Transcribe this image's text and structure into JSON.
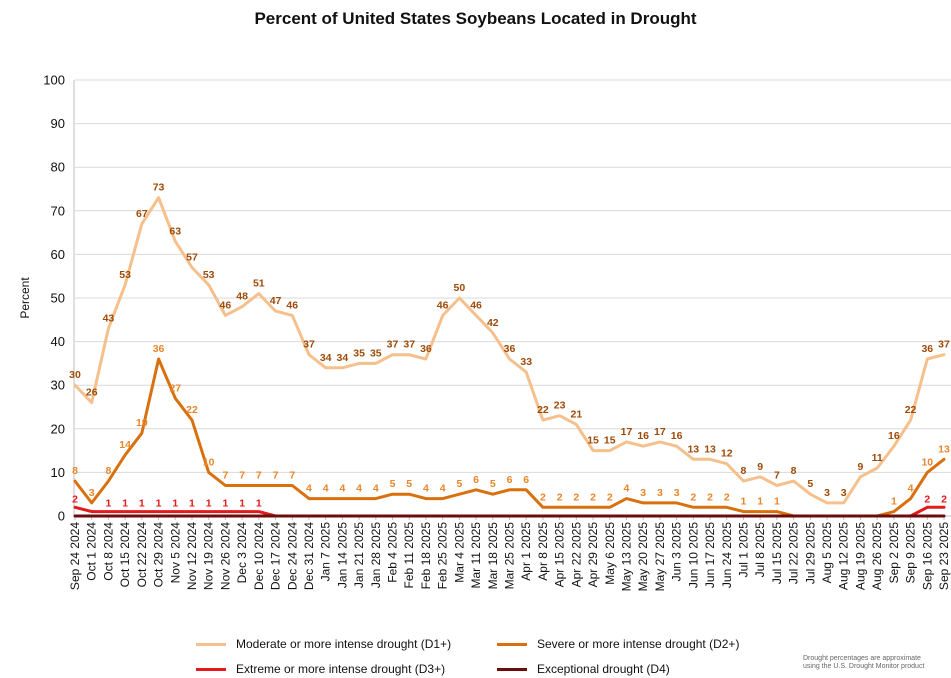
{
  "chart_data": {
    "type": "line",
    "title": "Percent of United States Soybeans Located in Drought",
    "ylabel": "Percent",
    "xlabel": "",
    "ylim": [
      0,
      100
    ],
    "yticks": [
      0,
      10,
      20,
      30,
      40,
      50,
      60,
      70,
      80,
      90,
      100
    ],
    "grid": true,
    "legend_position": "bottom",
    "categories": [
      "Sep 24 2024",
      "Oct 1 2024",
      "Oct 8 2024",
      "Oct 15 2024",
      "Oct 22 2024",
      "Oct 29 2024",
      "Nov 5 2024",
      "Nov 12 2024",
      "Nov 19 2024",
      "Nov 26 2024",
      "Dec 3 2024",
      "Dec 10 2024",
      "Dec 17 2024",
      "Dec 24 2024",
      "Dec 31 2024",
      "Jan 7 2025",
      "Jan 14 2025",
      "Jan 21 2025",
      "Jan 28 2025",
      "Feb 4 2025",
      "Feb 11 2025",
      "Feb 18 2025",
      "Feb 25 2025",
      "Mar 4 2025",
      "Mar 11 2025",
      "Mar 18 2025",
      "Mar 25 2025",
      "Apr 1 2025",
      "Apr 8 2025",
      "Apr 15 2025",
      "Apr 22 2025",
      "Apr 29 2025",
      "May 6 2025",
      "May 13 2025",
      "May 20 2025",
      "May 27 2025",
      "Jun 3 2025",
      "Jun 10 2025",
      "Jun 17 2025",
      "Jun 24 2025",
      "Jul 1 2025",
      "Jul 8 2025",
      "Jul 15 2025",
      "Jul 22 2025",
      "Jul 29 2025",
      "Aug 5 2025",
      "Aug 12 2025",
      "Aug 19 2025",
      "Aug 26 2025",
      "Sep 2 2025",
      "Sep 9 2025",
      "Sep 16 2025",
      "Sep 23 2025"
    ],
    "xticklabels": [
      "Sep 24 2024",
      "Oct 1 2024",
      "Oct 8 2024",
      "Oct 15 2024",
      "Oct 22 2024",
      "Oct 29 2024",
      "Nov 5 2024",
      "Nov 12 2024",
      "Nov 19 2024",
      "Nov 26 2024",
      "Dec 3 2024",
      "Dec 10 2024",
      "Dec 17 2024",
      "Dec 24 2024",
      "Dec 31 2024",
      "Jan 7 2025",
      "Jan 14 2025",
      "Jan 21 2025",
      "Jan 28 2025",
      "Feb 4 2025",
      "Feb 11 2025",
      "Feb 18 2025",
      "Feb 25 2025",
      "Mar 4 2025",
      "Mar 11 2025",
      "Mar 18 2025",
      "Mar 25 2025",
      "Apr 1 2025",
      "Apr 8 2025",
      "Apr 15 2025",
      "Apr 22 2025",
      "Apr 29 2025",
      "May 6 2025",
      "May 13 2025",
      "May 20 2025",
      "May 27 2025",
      "Jun 3 2025",
      "Jun 10 2025",
      "Jun 17 2025",
      "Jun 24 2025",
      "Jul 1 2025",
      "Jul 8 2025",
      "Jul 15 2025",
      "Jul 22 2025",
      "Jul 29 2025",
      "Aug 5 2025",
      "Aug 12 2025",
      "Aug 19 2025",
      "Aug 26 2025",
      "Sep 2 2025",
      "Sep 9 2025",
      "Sep 16 2025",
      "Sep 23 2025"
    ],
    "series": [
      {
        "name": "Moderate or more intense drought (D1+)",
        "color": "#f5c08c",
        "label_color": "#9e4a08",
        "values": [
          30,
          26,
          43,
          53,
          67,
          73,
          63,
          57,
          53,
          46,
          48,
          51,
          47,
          46,
          37,
          34,
          34,
          35,
          35,
          37,
          37,
          36,
          46,
          50,
          46,
          42,
          36,
          33,
          22,
          23,
          21,
          15,
          15,
          17,
          16,
          17,
          16,
          13,
          13,
          12,
          8,
          9,
          7,
          8,
          5,
          3,
          3,
          9,
          11,
          16,
          22,
          36,
          37
        ]
      },
      {
        "name": "Severe or more intense drought (D2+)",
        "color": "#d9700e",
        "label_color": "#e8862a",
        "values": [
          8,
          3,
          8,
          14,
          19,
          36,
          27,
          22,
          10,
          7,
          7,
          7,
          7,
          7,
          4,
          4,
          4,
          4,
          4,
          5,
          5,
          4,
          4,
          5,
          6,
          5,
          6,
          6,
          2,
          2,
          2,
          2,
          2,
          4,
          3,
          3,
          3,
          2,
          2,
          2,
          1,
          1,
          1,
          0,
          0,
          0,
          0,
          0,
          0,
          1,
          4,
          10,
          13
        ]
      },
      {
        "name": "Extreme or more intense drought (D3+)",
        "color": "#e31a1c",
        "label_color": "#e31a1c",
        "values": [
          2,
          1,
          1,
          1,
          1,
          1,
          1,
          1,
          1,
          1,
          1,
          1,
          0,
          0,
          0,
          0,
          0,
          0,
          0,
          0,
          0,
          0,
          0,
          0,
          0,
          0,
          0,
          0,
          0,
          0,
          0,
          0,
          0,
          0,
          0,
          0,
          0,
          0,
          0,
          0,
          0,
          0,
          0,
          0,
          0,
          0,
          0,
          0,
          0,
          0,
          0,
          2,
          2
        ]
      },
      {
        "name": "Exceptional drought (D4)",
        "color": "#6b0d0d",
        "label_color": "#6b0d0d",
        "values": [
          0,
          0,
          0,
          0,
          0,
          0,
          0,
          0,
          0,
          0,
          0,
          0,
          0,
          0,
          0,
          0,
          0,
          0,
          0,
          0,
          0,
          0,
          0,
          0,
          0,
          0,
          0,
          0,
          0,
          0,
          0,
          0,
          0,
          0,
          0,
          0,
          0,
          0,
          0,
          0,
          0,
          0,
          0,
          0,
          0,
          0,
          0,
          0,
          0,
          0,
          0,
          0,
          0
        ]
      }
    ],
    "data_labels": {
      "d1": [
        30,
        26,
        43,
        53,
        67,
        73,
        63,
        57,
        53,
        46,
        48,
        51,
        47,
        46,
        37,
        34,
        34,
        35,
        35,
        37,
        37,
        36,
        46,
        50,
        46,
        42,
        36,
        33,
        22,
        23,
        21,
        15,
        15,
        17,
        16,
        17,
        16,
        13,
        13,
        12,
        8,
        9,
        7,
        8,
        5,
        3,
        3,
        9,
        11,
        16,
        22,
        36,
        37
      ],
      "d2": [
        8,
        3,
        8,
        14,
        19,
        36,
        27,
        22,
        10,
        7,
        7,
        7,
        7,
        7,
        4,
        4,
        4,
        4,
        4,
        5,
        5,
        4,
        4,
        5,
        6,
        5,
        6,
        6,
        2,
        2,
        2,
        2,
        2,
        4,
        3,
        3,
        3,
        2,
        2,
        2,
        1,
        1,
        1,
        null,
        null,
        null,
        null,
        null,
        null,
        1,
        4,
        10,
        13
      ],
      "d3": [
        2,
        null,
        1,
        1,
        1,
        1,
        1,
        1,
        1,
        1,
        1,
        1,
        null,
        null,
        null,
        null,
        null,
        null,
        null,
        null,
        null,
        null,
        null,
        null,
        null,
        null,
        null,
        null,
        null,
        null,
        null,
        null,
        null,
        null,
        null,
        null,
        null,
        null,
        null,
        null,
        null,
        null,
        null,
        null,
        null,
        null,
        null,
        null,
        null,
        null,
        null,
        2,
        2
      ]
    },
    "footnote": "Drought percentages are approximate\nusing the U.S. Drought Monitor product"
  }
}
